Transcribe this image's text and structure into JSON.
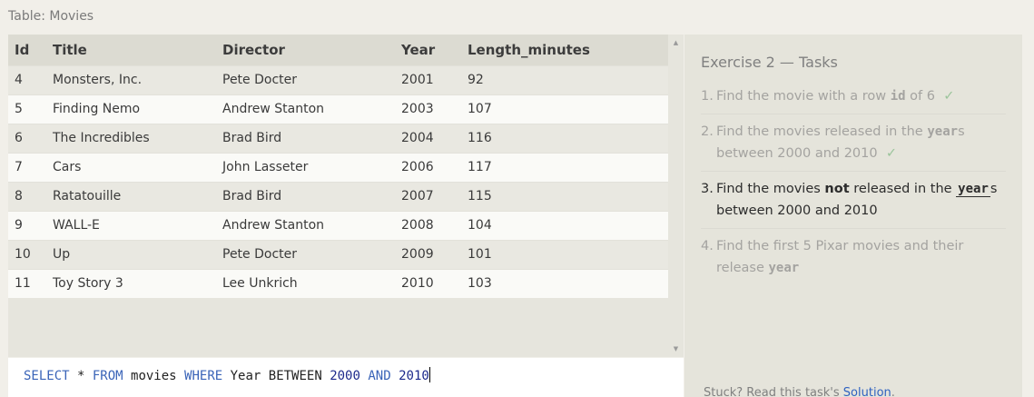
{
  "table_caption": "Table: Movies",
  "table": {
    "columns": [
      "Id",
      "Title",
      "Director",
      "Year",
      "Length_minutes"
    ],
    "rows": [
      [
        "4",
        "Monsters, Inc.",
        "Pete Docter",
        "2001",
        "92"
      ],
      [
        "5",
        "Finding Nemo",
        "Andrew Stanton",
        "2003",
        "107"
      ],
      [
        "6",
        "The Incredibles",
        "Brad Bird",
        "2004",
        "116"
      ],
      [
        "7",
        "Cars",
        "John Lasseter",
        "2006",
        "117"
      ],
      [
        "8",
        "Ratatouille",
        "Brad Bird",
        "2007",
        "115"
      ],
      [
        "9",
        "WALL-E",
        "Andrew Stanton",
        "2008",
        "104"
      ],
      [
        "10",
        "Up",
        "Pete Docter",
        "2009",
        "101"
      ],
      [
        "11",
        "Toy Story 3",
        "Lee Unkrich",
        "2010",
        "103"
      ]
    ]
  },
  "query": {
    "tokens": [
      {
        "text": "SELECT",
        "kind": "kw"
      },
      {
        "text": " * ",
        "kind": "plain"
      },
      {
        "text": "FROM",
        "kind": "kw"
      },
      {
        "text": " movies ",
        "kind": "plain"
      },
      {
        "text": "WHERE",
        "kind": "kw"
      },
      {
        "text": " Year BETWEEN ",
        "kind": "plain"
      },
      {
        "text": "2000",
        "kind": "num"
      },
      {
        "text": " ",
        "kind": "plain"
      },
      {
        "text": "AND",
        "kind": "kw"
      },
      {
        "text": " ",
        "kind": "plain"
      },
      {
        "text": "2010",
        "kind": "num"
      }
    ]
  },
  "tasks": {
    "title": "Exercise 2 — Tasks",
    "items": [
      {
        "num": "1.",
        "parts": [
          {
            "t": "Find the movie with a row "
          },
          {
            "code": "id"
          },
          {
            "t": " of 6"
          }
        ],
        "done": true,
        "current": false
      },
      {
        "num": "2.",
        "parts": [
          {
            "t": "Find the movies released in the "
          },
          {
            "code": "year"
          },
          {
            "t": "s between 2000 and 2010"
          }
        ],
        "done": true,
        "current": false
      },
      {
        "num": "3.",
        "parts": [
          {
            "t": "Find the movies "
          },
          {
            "bold": "not"
          },
          {
            "t": " released in the "
          },
          {
            "code": "year"
          },
          {
            "t": "s between 2000 and 2010"
          }
        ],
        "done": false,
        "current": true
      },
      {
        "num": "4.",
        "parts": [
          {
            "t": "Find the first 5 Pixar movies and their release "
          },
          {
            "code": "year"
          }
        ],
        "done": false,
        "current": false
      }
    ],
    "check_glyph": "✓"
  },
  "help": {
    "prefix": "Stuck? Read this task's ",
    "link_label": "Solution",
    "suffix": "."
  },
  "scrollbar": {
    "up_glyph": "▲",
    "down_glyph": "▼"
  },
  "colors": {
    "keyword": "#3a64b8",
    "number": "#1e2a8c",
    "link": "#2f62c0",
    "check": "#9bc49b"
  }
}
